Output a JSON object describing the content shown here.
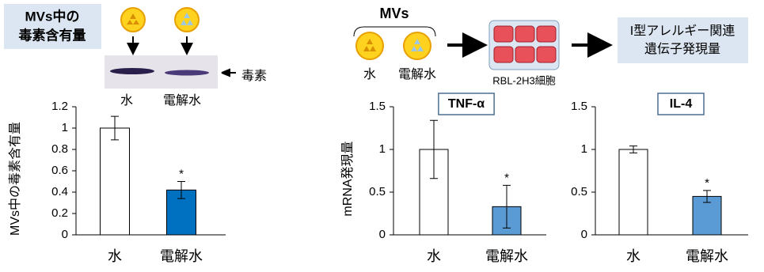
{
  "diagram": {
    "toxin_box": [
      "MVs中の",
      "毒素含有量"
    ],
    "blot_labels": [
      "水",
      "電解水"
    ],
    "toxin_label": "毒素",
    "mvs_title": "MVs",
    "mvs_labels": [
      "水",
      "電解水"
    ],
    "cell_label": "RBL-2H3細胞",
    "gene_box": [
      "I型アレルギー関連",
      "遺伝子発現量"
    ]
  },
  "chart_data": [
    {
      "type": "bar",
      "ylabel": "MVs中の毒素含有量",
      "categories": [
        "水",
        "電解水"
      ],
      "values": [
        1,
        0.42
      ],
      "errors": [
        0.11,
        0.08
      ],
      "colors": [
        "#ffffff",
        "#0070c0"
      ],
      "annotation": "*",
      "ylim": [
        0,
        1.2
      ],
      "yticks": [
        0,
        0.2,
        0.4,
        0.6,
        0.8,
        1,
        1.2
      ]
    },
    {
      "type": "bar",
      "title": "TNF-α",
      "ylabel": "mRNA発現量",
      "categories": [
        "水",
        "電解水"
      ],
      "values": [
        1,
        0.33
      ],
      "errors": [
        0.34,
        0.25
      ],
      "colors": [
        "#ffffff",
        "#5b9bd5"
      ],
      "annotation": "*",
      "ylim": [
        0,
        1.5
      ],
      "yticks": [
        0,
        0.5,
        1,
        1.5
      ]
    },
    {
      "type": "bar",
      "title": "IL-4",
      "categories": [
        "水",
        "電解水"
      ],
      "values": [
        1,
        0.45
      ],
      "errors": [
        0.04,
        0.07
      ],
      "colors": [
        "#ffffff",
        "#5b9bd5"
      ],
      "annotation": "*",
      "ylim": [
        0,
        1.5
      ],
      "yticks": [
        0,
        0.5,
        1,
        1.5
      ]
    }
  ]
}
